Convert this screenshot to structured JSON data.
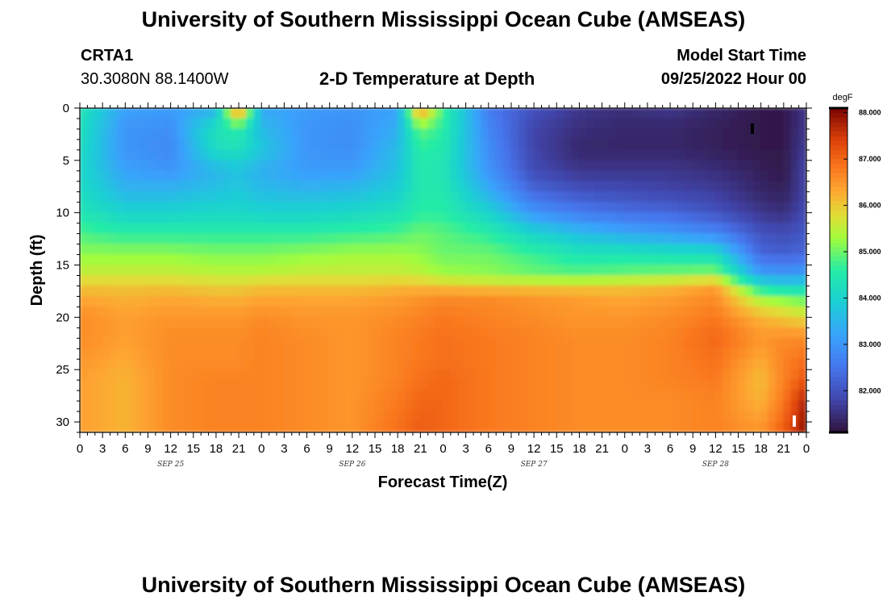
{
  "header": {
    "title": "University of Southern Mississippi Ocean Cube (AMSEAS)",
    "station": "CRTA1",
    "coords": "30.3080N  88.1400W",
    "model_start_label": "Model Start Time",
    "model_start_value": "09/25/2022 Hour 00"
  },
  "footer": {
    "title": "University of Southern Mississippi Ocean Cube (AMSEAS)"
  },
  "chart_data": {
    "type": "heatmap",
    "title": "2-D Temperature at Depth",
    "xlabel": "Forecast Time(Z)",
    "ylabel": "Depth (ft)",
    "x_ticks": [
      "0",
      "3",
      "6",
      "9",
      "12",
      "15",
      "18",
      "21",
      "0",
      "3",
      "6",
      "9",
      "12",
      "15",
      "18",
      "21",
      "0",
      "3",
      "6",
      "9",
      "12",
      "15",
      "18",
      "21",
      "0",
      "3",
      "6",
      "9",
      "12",
      "15",
      "18",
      "21",
      "0"
    ],
    "x_range_hours": [
      0,
      96
    ],
    "date_labels": [
      {
        "text": "SEP 25",
        "hour": 12
      },
      {
        "text": "SEP 26",
        "hour": 36
      },
      {
        "text": "SEP 27",
        "hour": 60
      },
      {
        "text": "SEP 28",
        "hour": 84
      }
    ],
    "y_ticks": [
      "0",
      "5",
      "10",
      "15",
      "20",
      "25",
      "30"
    ],
    "y_range_ft": [
      0,
      31
    ],
    "colorbar": {
      "unit": "degF",
      "range": [
        81.1,
        88.1
      ],
      "tick_labels": [
        "88.000",
        "87.000",
        "86.000",
        "85.000",
        "84.000",
        "83.000",
        "82.000"
      ],
      "tick_values": [
        88,
        87,
        86,
        85,
        84,
        83,
        82
      ]
    },
    "depth_levels_ft": [
      0,
      2,
      4,
      6,
      8,
      10,
      12,
      14,
      16,
      17,
      18,
      20,
      22,
      24,
      26,
      28,
      31
    ],
    "sample_hours": [
      0,
      6,
      12,
      18,
      21,
      24,
      30,
      36,
      42,
      45,
      48,
      54,
      60,
      66,
      72,
      78,
      84,
      90,
      93,
      96
    ],
    "temperature_degF": [
      [
        84.4,
        83.2,
        83.1,
        83.4,
        87.0,
        83.3,
        83.1,
        83.0,
        83.2,
        86.7,
        84.8,
        82.6,
        82.0,
        81.6,
        81.5,
        81.6,
        81.4,
        81.2,
        81.2,
        81.6
      ],
      [
        84.3,
        83.0,
        82.9,
        84.3,
        84.6,
        83.6,
        83.0,
        82.9,
        83.4,
        85.0,
        84.6,
        82.8,
        81.8,
        81.5,
        81.4,
        81.4,
        81.3,
        81.2,
        81.2,
        81.6
      ],
      [
        84.2,
        83.0,
        82.8,
        84.2,
        84.3,
        83.8,
        83.0,
        82.9,
        83.6,
        84.6,
        84.5,
        82.9,
        81.8,
        81.4,
        81.4,
        81.4,
        81.3,
        81.2,
        81.2,
        81.7
      ],
      [
        84.1,
        83.2,
        83.0,
        83.5,
        83.7,
        83.4,
        83.1,
        83.1,
        83.7,
        84.5,
        84.4,
        83.0,
        81.9,
        81.6,
        81.6,
        81.6,
        81.5,
        81.3,
        81.2,
        81.8
      ],
      [
        84.2,
        83.5,
        83.5,
        83.7,
        83.8,
        83.6,
        83.5,
        83.6,
        83.9,
        84.5,
        84.5,
        83.4,
        82.3,
        82.0,
        81.9,
        81.8,
        81.7,
        81.4,
        81.3,
        81.8
      ],
      [
        84.4,
        84.0,
        84.0,
        84.1,
        84.1,
        84.0,
        84.0,
        84.1,
        84.3,
        84.6,
        84.6,
        84.0,
        83.0,
        82.6,
        82.4,
        82.3,
        82.0,
        81.6,
        81.5,
        81.9
      ],
      [
        84.8,
        84.6,
        84.6,
        84.6,
        84.6,
        84.6,
        84.6,
        84.7,
        84.8,
        85.0,
        84.9,
        84.6,
        84.0,
        83.6,
        83.3,
        83.1,
        82.8,
        82.0,
        81.9,
        82.1
      ],
      [
        85.2,
        85.2,
        85.2,
        85.1,
        85.1,
        85.1,
        85.2,
        85.3,
        85.3,
        85.2,
        85.0,
        85.0,
        84.7,
        84.4,
        84.4,
        84.3,
        84.2,
        82.3,
        82.2,
        82.3
      ],
      [
        85.6,
        85.6,
        85.6,
        85.5,
        85.5,
        85.5,
        85.6,
        85.6,
        85.6,
        85.5,
        85.3,
        85.2,
        85.0,
        84.9,
        85.0,
        85.1,
        85.2,
        83.2,
        83.1,
        83.2
      ],
      [
        86.0,
        86.0,
        86.0,
        85.9,
        85.9,
        86.0,
        86.0,
        86.0,
        86.1,
        86.1,
        86.0,
        85.9,
        85.9,
        85.9,
        86.0,
        86.1,
        86.4,
        84.2,
        84.0,
        84.0
      ],
      [
        86.3,
        86.2,
        86.3,
        86.2,
        86.2,
        86.3,
        86.3,
        86.3,
        86.4,
        86.5,
        86.6,
        86.6,
        86.5,
        86.4,
        86.3,
        86.4,
        86.6,
        85.2,
        85.0,
        84.8
      ],
      [
        86.6,
        86.4,
        86.5,
        86.5,
        86.5,
        86.6,
        86.5,
        86.5,
        86.6,
        86.7,
        86.8,
        86.7,
        86.6,
        86.5,
        86.5,
        86.6,
        86.8,
        86.2,
        86.0,
        85.8
      ],
      [
        86.6,
        86.4,
        86.6,
        86.6,
        86.6,
        86.7,
        86.6,
        86.5,
        86.7,
        86.8,
        86.9,
        86.8,
        86.7,
        86.6,
        86.6,
        86.7,
        87.0,
        86.5,
        86.6,
        86.6
      ],
      [
        86.5,
        86.3,
        86.6,
        86.6,
        86.6,
        86.7,
        86.6,
        86.5,
        86.7,
        86.8,
        86.9,
        86.8,
        86.7,
        86.6,
        86.6,
        86.7,
        86.9,
        86.3,
        86.7,
        86.9
      ],
      [
        86.4,
        86.2,
        86.6,
        86.7,
        86.7,
        86.7,
        86.6,
        86.5,
        86.7,
        86.9,
        87.0,
        86.8,
        86.7,
        86.6,
        86.6,
        86.7,
        86.8,
        86.1,
        86.7,
        87.2
      ],
      [
        86.4,
        86.2,
        86.6,
        86.7,
        86.7,
        86.7,
        86.6,
        86.5,
        86.8,
        87.0,
        87.0,
        86.8,
        86.7,
        86.6,
        86.6,
        86.6,
        86.7,
        86.2,
        86.8,
        87.8
      ],
      [
        86.4,
        86.2,
        86.6,
        86.7,
        86.7,
        86.7,
        86.6,
        86.5,
        86.9,
        87.1,
        87.0,
        86.8,
        86.7,
        86.6,
        86.6,
        86.6,
        86.7,
        86.5,
        87.1,
        88.0
      ]
    ]
  }
}
